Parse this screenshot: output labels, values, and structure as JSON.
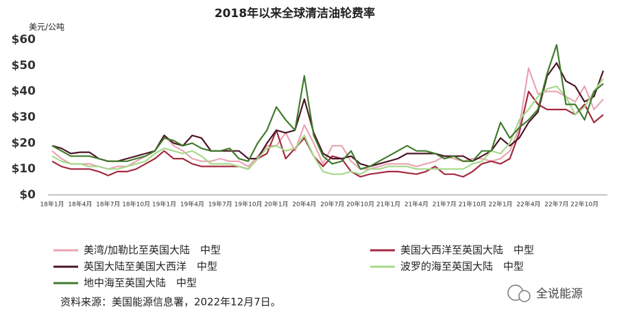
{
  "chart_data": {
    "type": "line",
    "title": "2018年以来全球清洁油轮费率",
    "y_axis_label": "美元/公吨",
    "categories": [
      "18年1月",
      null,
      null,
      "18年4月",
      null,
      null,
      "18年7月",
      null,
      null,
      "18年10月",
      null,
      null,
      "19年1月",
      null,
      null,
      "19年4月",
      null,
      null,
      "19年7月",
      null,
      null,
      "19年10月",
      null,
      null,
      "20年1月",
      null,
      null,
      "20年4月",
      null,
      null,
      "20年7月",
      null,
      null,
      "20年10月",
      null,
      null,
      "21年1月",
      null,
      null,
      "21年4月",
      null,
      null,
      "21年7月",
      null,
      null,
      "21年10月",
      null,
      null,
      "22年1月",
      null,
      null,
      "22年4月",
      null,
      null,
      "22年7月",
      null,
      null,
      "22年10月",
      null,
      null
    ],
    "series": [
      {
        "name": "美湾/加勒比至英国大陆　中型",
        "color": "#e8a5b2",
        "values": [
          17,
          14,
          12,
          12,
          12,
          11,
          10,
          11,
          11,
          13,
          15,
          17,
          23,
          19,
          17,
          14,
          13,
          13,
          14,
          13,
          13,
          11,
          15,
          19,
          19,
          24,
          17,
          27,
          20,
          12,
          19,
          19,
          13,
          10,
          10,
          11,
          12,
          12,
          12,
          11,
          12,
          13,
          15,
          14,
          13,
          14,
          14,
          13,
          14,
          17,
          26,
          49,
          39,
          40,
          40,
          38,
          36,
          42,
          33,
          37
        ]
      },
      {
        "name": "美国大西洋至英国大陆　中型",
        "color": "#a3293f",
        "values": [
          13,
          11,
          10,
          10,
          10,
          9,
          7.5,
          9,
          9,
          10,
          12,
          14,
          17,
          14,
          14,
          12,
          11,
          11,
          11,
          11,
          11,
          10,
          14,
          16,
          25,
          14,
          18,
          22,
          15,
          11,
          15,
          14,
          9,
          7,
          8,
          8.5,
          9,
          9,
          8.5,
          8,
          9,
          11,
          8,
          8,
          7,
          9,
          12,
          13,
          12,
          14,
          24,
          40,
          35,
          33,
          33,
          33,
          31,
          35,
          28,
          31
        ]
      },
      {
        "name": "英国大陆至美国大西洋　中型",
        "color": "#4a1423",
        "values": [
          19,
          18,
          16,
          16.5,
          16.5,
          14,
          13,
          13,
          14,
          15,
          16,
          17,
          23,
          20,
          19,
          23,
          22,
          17,
          17,
          17,
          17,
          14,
          14,
          20,
          25,
          24,
          25,
          37,
          24,
          16,
          14,
          14,
          15,
          12,
          11,
          12,
          13,
          14,
          16,
          16,
          16,
          16,
          15,
          15,
          15,
          13,
          15,
          17,
          22,
          19,
          22,
          28,
          32,
          46,
          51,
          44,
          42,
          36,
          38,
          48
        ]
      },
      {
        "name": "波罗的海至英国大陆　中型",
        "color": "#a6d98a",
        "values": [
          15,
          13,
          12,
          12,
          11,
          11,
          10,
          10,
          11,
          12,
          13,
          16,
          18,
          17,
          16,
          17,
          15,
          12,
          12,
          12,
          11,
          10,
          14,
          18,
          19,
          17,
          18,
          23,
          15,
          9,
          8,
          8,
          9,
          8,
          10,
          10,
          11,
          11,
          11,
          10,
          10,
          10,
          10,
          10,
          10,
          12,
          13,
          17,
          16,
          20,
          29,
          33,
          38,
          41,
          42,
          38,
          31,
          34,
          40,
          45
        ]
      },
      {
        "name": "地中海至英国大陆　中型",
        "color": "#3f7a2c",
        "values": [
          19,
          17,
          15,
          15,
          15,
          14,
          13,
          13,
          13,
          14,
          15,
          17,
          22,
          21,
          19,
          20,
          18,
          17,
          17,
          18,
          14,
          13,
          20,
          25,
          34,
          29,
          25,
          46,
          23,
          15,
          12,
          13,
          17,
          10,
          11,
          13,
          15,
          17,
          19,
          17,
          17,
          16,
          14,
          15,
          13,
          13,
          17,
          17,
          28,
          22,
          26,
          29,
          33,
          47,
          58,
          35,
          35,
          29,
          40,
          43
        ]
      }
    ],
    "ylim": [
      0,
      60
    ],
    "yticks": [
      {
        "value": 0,
        "label": "$0"
      },
      {
        "value": 10,
        "label": "$10"
      },
      {
        "value": 20,
        "label": "$20"
      },
      {
        "value": 30,
        "label": "$30"
      },
      {
        "value": 40,
        "label": "$40"
      },
      {
        "value": 50,
        "label": "$50"
      },
      {
        "value": 60,
        "label": "$60"
      }
    ],
    "grid": false,
    "source": "资料来源：美国能源信息署，2022年12月7日。",
    "watermark": "全说能源"
  }
}
